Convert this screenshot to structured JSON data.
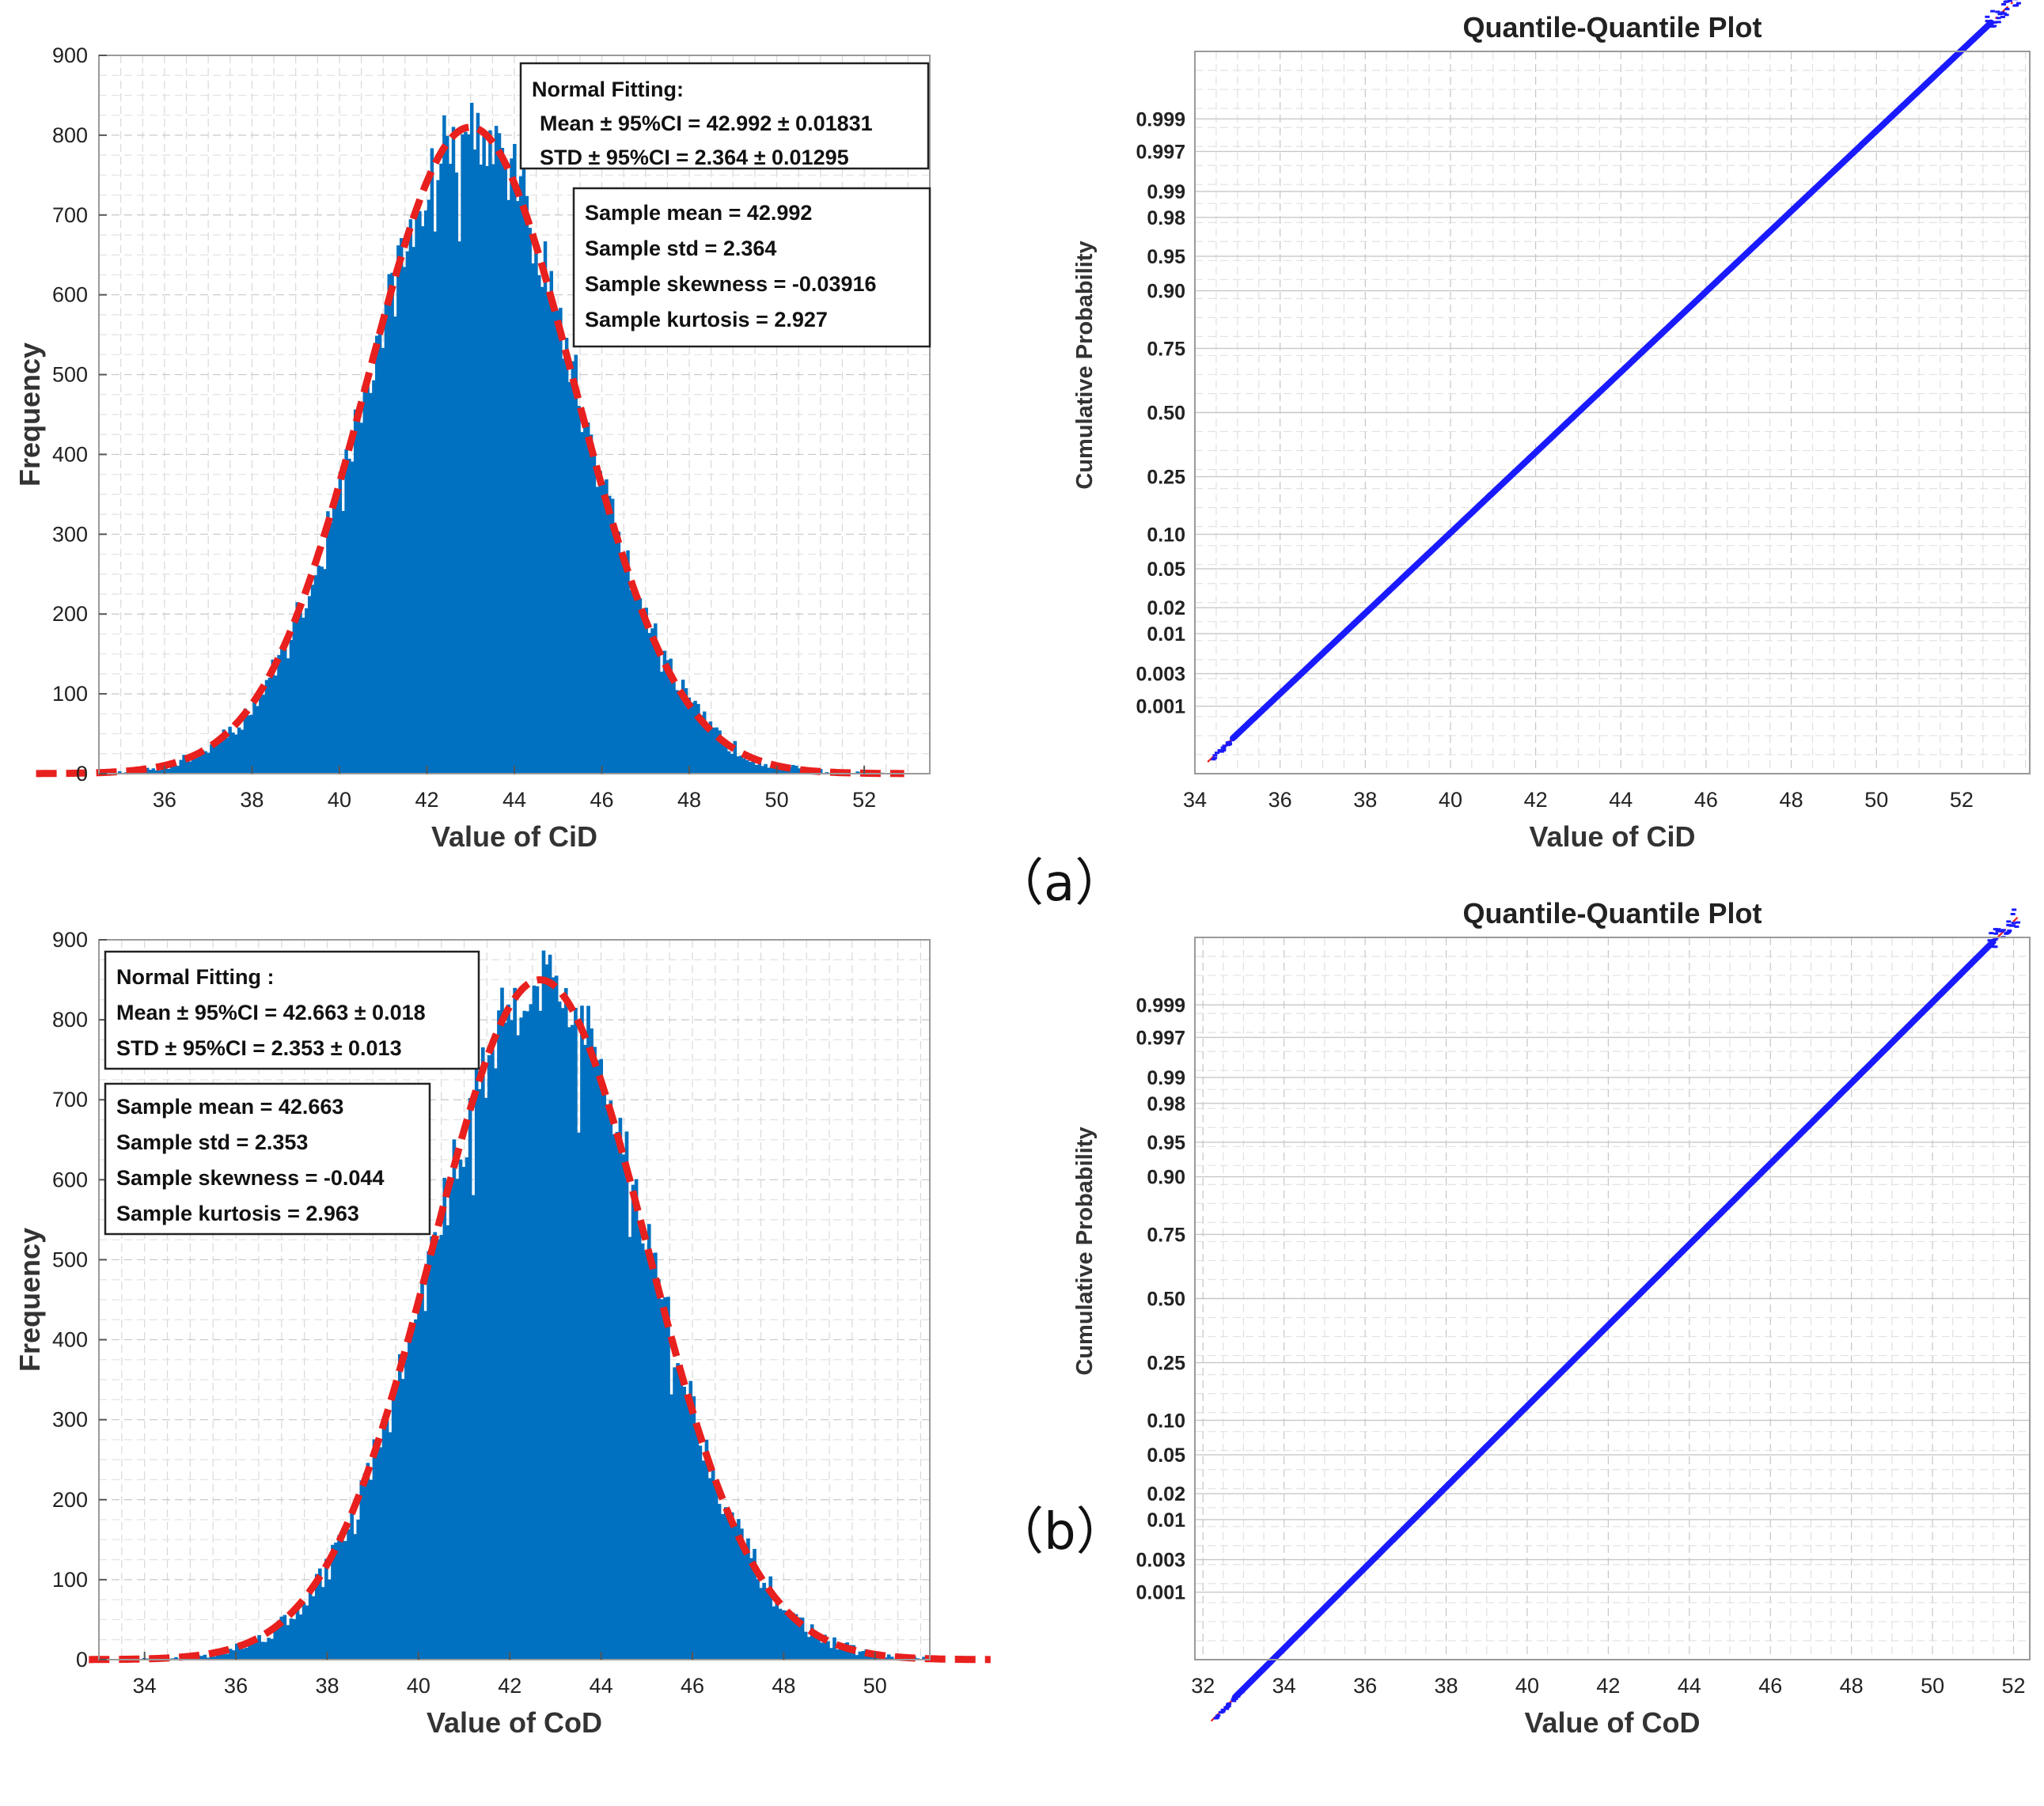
{
  "panel_labels": [
    "（a）",
    "（b）"
  ],
  "chart_data": [
    {
      "type": "bar",
      "id": "hist-a",
      "title": "",
      "xlabel": "Value of CiD",
      "ylabel": "Frequency",
      "xlim": [
        34.5,
        53.5
      ],
      "ylim": [
        0,
        900
      ],
      "xticks": [
        36,
        38,
        40,
        42,
        44,
        46,
        48,
        50,
        52
      ],
      "yticks": [
        0,
        100,
        200,
        300,
        400,
        500,
        600,
        700,
        800,
        900
      ],
      "grid": true,
      "fit": {
        "mean": 42.992,
        "std": 2.364,
        "peak": 810
      },
      "box1": [
        "Normal Fitting:",
        "Mean ± 95%CI = 42.992 ± 0.01831",
        "STD   ± 95%CI = 2.364 ± 0.01295"
      ],
      "box2": [
        "Sample mean = 42.992",
        "Sample std = 2.364",
        "Sample skewness = -0.03916",
        "Sample kurtosis = 2.927"
      ],
      "colors": {
        "bars": "#0070c0",
        "fit": "#e8201e"
      }
    },
    {
      "type": "scatter",
      "id": "qq-a",
      "title": "Quantile-Quantile Plot",
      "xlabel": "Value of CiD",
      "ylabel": "Cumulative Probability",
      "xlim": [
        34,
        53.6
      ],
      "xticks": [
        34,
        36,
        38,
        40,
        42,
        44,
        46,
        48,
        50,
        52
      ],
      "yticks": [
        "0.001",
        "0.003",
        "0.01",
        "0.02",
        "0.05",
        "0.10",
        "0.25",
        "0.50",
        "0.75",
        "0.90",
        "0.95",
        "0.98",
        "0.99",
        "0.997",
        "0.999"
      ],
      "probs": [
        0.001,
        0.003,
        0.01,
        0.02,
        0.05,
        0.1,
        0.25,
        0.5,
        0.75,
        0.9,
        0.95,
        0.98,
        0.99,
        0.997,
        0.999
      ],
      "grid": true,
      "line": {
        "mean": 42.992,
        "std": 2.364
      },
      "data_range": [
        34.3,
        53.3
      ],
      "colors": {
        "points": "#1a1aff",
        "line": "#e8201e"
      }
    },
    {
      "type": "bar",
      "id": "hist-b",
      "title": "",
      "xlabel": "Value of CoD",
      "ylabel": "Frequency",
      "xlim": [
        33,
        51.2
      ],
      "ylim": [
        0,
        900
      ],
      "xticks": [
        34,
        36,
        38,
        40,
        42,
        44,
        46,
        48,
        50
      ],
      "yticks": [
        0,
        100,
        200,
        300,
        400,
        500,
        600,
        700,
        800,
        900
      ],
      "grid": true,
      "fit": {
        "mean": 42.663,
        "std": 2.353,
        "peak": 850
      },
      "box1": [
        "Normal Fitting :",
        "Mean ± 95%CI = 42.663 ± 0.018",
        "STD   ± 95%CI = 2.353 ± 0.013"
      ],
      "box2": [
        "Sample mean = 42.663",
        "Sample std = 2.353",
        "Sample skewness = -0.044",
        "Sample kurtosis = 2.963"
      ],
      "colors": {
        "bars": "#0070c0",
        "fit": "#e8201e"
      }
    },
    {
      "type": "scatter",
      "id": "qq-b",
      "title": "Quantile-Quantile Plot",
      "xlabel": "Value of CoD",
      "ylabel": "Cumulative Probability",
      "xlim": [
        31.8,
        52.4
      ],
      "xticks": [
        32,
        34,
        36,
        38,
        40,
        42,
        44,
        46,
        48,
        50,
        52
      ],
      "yticks": [
        "0.001",
        "0.003",
        "0.01",
        "0.02",
        "0.05",
        "0.10",
        "0.25",
        "0.50",
        "0.75",
        "0.90",
        "0.95",
        "0.98",
        "0.99",
        "0.997",
        "0.999"
      ],
      "probs": [
        0.001,
        0.003,
        0.01,
        0.02,
        0.05,
        0.1,
        0.25,
        0.5,
        0.75,
        0.9,
        0.95,
        0.98,
        0.99,
        0.997,
        0.999
      ],
      "grid": true,
      "line": {
        "mean": 42.663,
        "std": 2.353
      },
      "data_range": [
        32.2,
        52.1
      ],
      "colors": {
        "points": "#1a1aff",
        "line": "#e8201e"
      }
    }
  ]
}
